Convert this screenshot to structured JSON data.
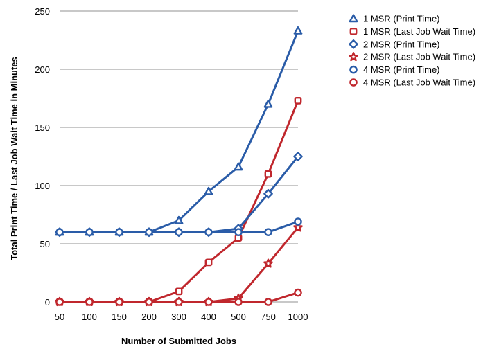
{
  "chart_data": {
    "type": "line",
    "title": "",
    "xlabel": "Number of Submitted Jobs",
    "ylabel": "Total Print Time / Last Job Wait Time in Minutes",
    "categories": [
      "50",
      "100",
      "150",
      "200",
      "300",
      "400",
      "500",
      "750",
      "1000"
    ],
    "ylim": [
      0,
      250
    ],
    "yticks": [
      0,
      50,
      100,
      150,
      200,
      250
    ],
    "grid": true,
    "legend_position": "top-right",
    "series": [
      {
        "name": "1 MSR (Print Time)",
        "color": "#2a5ca8",
        "marker": "triangle",
        "values": [
          60,
          60,
          60,
          60,
          70,
          95,
          116,
          170,
          233
        ]
      },
      {
        "name": "1 MSR (Last Job Wait Time)",
        "color": "#c0272d",
        "marker": "square",
        "values": [
          0,
          0,
          0,
          0,
          9,
          34,
          55,
          110,
          173
        ]
      },
      {
        "name": "2 MSR (Print Time)",
        "color": "#2a5ca8",
        "marker": "diamond",
        "values": [
          60,
          60,
          60,
          60,
          60,
          60,
          63,
          93,
          125
        ]
      },
      {
        "name": "2 MSR (Last Job Wait Time)",
        "color": "#c0272d",
        "marker": "star",
        "values": [
          0,
          0,
          0,
          0,
          0,
          0,
          3,
          33,
          64
        ]
      },
      {
        "name": "4 MSR (Print Time)",
        "color": "#2a5ca8",
        "marker": "circle",
        "values": [
          60,
          60,
          60,
          60,
          60,
          60,
          60,
          60,
          69
        ]
      },
      {
        "name": "4 MSR (Last Job Wait Time)",
        "color": "#c0272d",
        "marker": "circle",
        "values": [
          0,
          0,
          0,
          0,
          0,
          0,
          0,
          0,
          8
        ]
      }
    ]
  }
}
